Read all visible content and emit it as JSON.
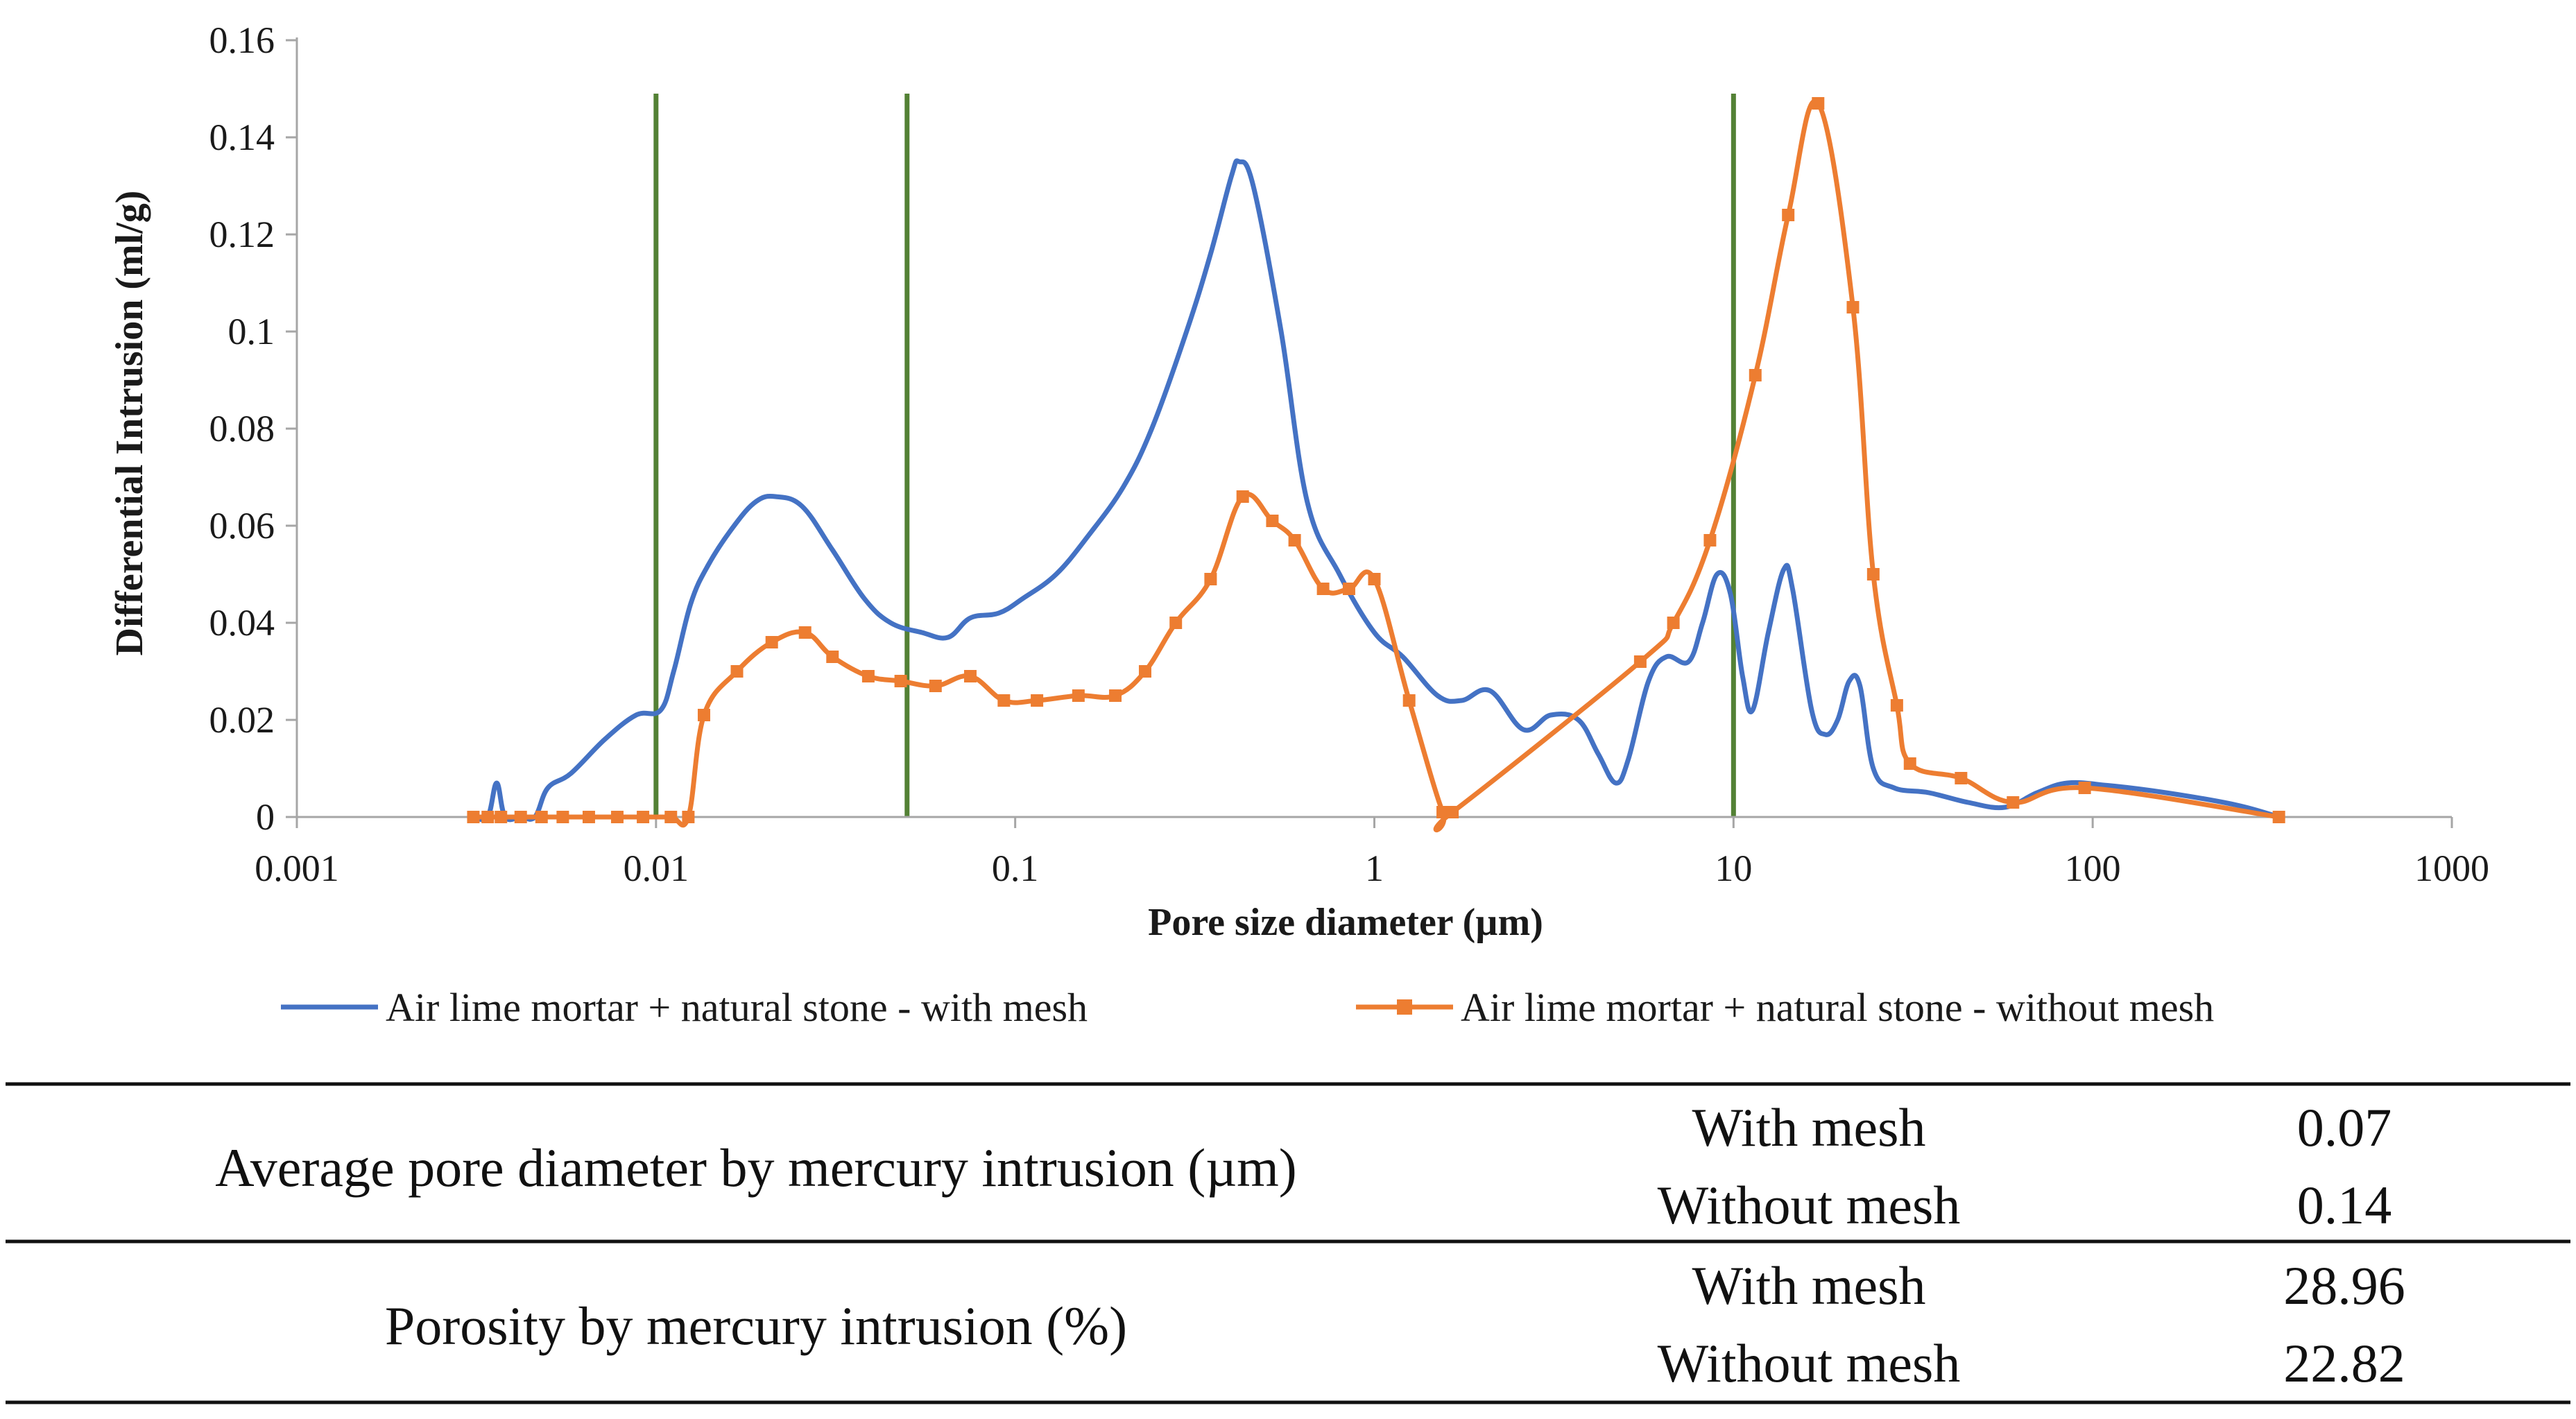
{
  "chart_data": {
    "type": "line",
    "title": "",
    "xlabel": "Pore size diameter (µm)",
    "ylabel": "Differential Intrusion  (ml/g)",
    "xscale": "log",
    "xlim": [
      0.001,
      1000
    ],
    "ylim": [
      0,
      0.16
    ],
    "xticks": [
      {
        "value": 0.001,
        "label": "0.001"
      },
      {
        "value": 0.01,
        "label": "0.01"
      },
      {
        "value": 0.1,
        "label": "0.1"
      },
      {
        "value": 1,
        "label": "1"
      },
      {
        "value": 10,
        "label": "10"
      },
      {
        "value": 100,
        "label": "100"
      },
      {
        "value": 1000,
        "label": "1000"
      }
    ],
    "yticks": [
      {
        "value": 0,
        "label": "0"
      },
      {
        "value": 0.02,
        "label": "0.02"
      },
      {
        "value": 0.04,
        "label": "0.04"
      },
      {
        "value": 0.06,
        "label": "0.06"
      },
      {
        "value": 0.08,
        "label": "0.08"
      },
      {
        "value": 0.1,
        "label": "0.1"
      },
      {
        "value": 0.12,
        "label": "0.12"
      },
      {
        "value": 0.14,
        "label": "0.14"
      },
      {
        "value": 0.16,
        "label": "0.16"
      }
    ],
    "reference_lines_x": [
      0.01,
      0.05,
      10
    ],
    "reference_line_color": "#538135",
    "legend_position": "bottom",
    "series": [
      {
        "name": "Air lime mortar + natural stone - with mesh",
        "color": "#4472c4",
        "marker": "none",
        "points": [
          [
            0.0031,
            0
          ],
          [
            0.0034,
            0
          ],
          [
            0.0036,
            0.007
          ],
          [
            0.0038,
            0
          ],
          [
            0.0042,
            0
          ],
          [
            0.0046,
            0
          ],
          [
            0.005,
            0.006
          ],
          [
            0.0058,
            0.009
          ],
          [
            0.0072,
            0.016
          ],
          [
            0.0088,
            0.021
          ],
          [
            0.0103,
            0.022
          ],
          [
            0.0112,
            0.03
          ],
          [
            0.0125,
            0.044
          ],
          [
            0.014,
            0.052
          ],
          [
            0.0165,
            0.06
          ],
          [
            0.019,
            0.065
          ],
          [
            0.0215,
            0.066
          ],
          [
            0.0255,
            0.064
          ],
          [
            0.031,
            0.055
          ],
          [
            0.038,
            0.045
          ],
          [
            0.045,
            0.04
          ],
          [
            0.055,
            0.038
          ],
          [
            0.065,
            0.037
          ],
          [
            0.075,
            0.041
          ],
          [
            0.09,
            0.042
          ],
          [
            0.105,
            0.045
          ],
          [
            0.13,
            0.05
          ],
          [
            0.16,
            0.058
          ],
          [
            0.2,
            0.068
          ],
          [
            0.24,
            0.08
          ],
          [
            0.3,
            0.1
          ],
          [
            0.35,
            0.116
          ],
          [
            0.4,
            0.132
          ],
          [
            0.42,
            0.135
          ],
          [
            0.46,
            0.13
          ],
          [
            0.55,
            0.1
          ],
          [
            0.65,
            0.065
          ],
          [
            0.8,
            0.05
          ],
          [
            1.0,
            0.038
          ],
          [
            1.2,
            0.033
          ],
          [
            1.5,
            0.025
          ],
          [
            1.75,
            0.024
          ],
          [
            2.1,
            0.026
          ],
          [
            2.6,
            0.018
          ],
          [
            3.1,
            0.021
          ],
          [
            3.7,
            0.02
          ],
          [
            4.2,
            0.013
          ],
          [
            4.7,
            0.007
          ],
          [
            5.1,
            0.012
          ],
          [
            5.8,
            0.028
          ],
          [
            6.5,
            0.033
          ],
          [
            7.5,
            0.032
          ],
          [
            8.2,
            0.04
          ],
          [
            9.0,
            0.05
          ],
          [
            9.8,
            0.046
          ],
          [
            10.6,
            0.029
          ],
          [
            11.3,
            0.022
          ],
          [
            12.5,
            0.038
          ],
          [
            13.8,
            0.051
          ],
          [
            14.6,
            0.047
          ],
          [
            16.5,
            0.022
          ],
          [
            18,
            0.017
          ],
          [
            19.5,
            0.02
          ],
          [
            21,
            0.028
          ],
          [
            22.5,
            0.027
          ],
          [
            24.5,
            0.01
          ],
          [
            28,
            0.006
          ],
          [
            35,
            0.005
          ],
          [
            45,
            0.003
          ],
          [
            57,
            0.002
          ],
          [
            70,
            0.005
          ],
          [
            85,
            0.007
          ],
          [
            110,
            0.0065
          ],
          [
            160,
            0.005
          ],
          [
            250,
            0.0025
          ],
          [
            330,
            0
          ]
        ]
      },
      {
        "name": "Air lime mortar + natural stone - without mesh",
        "color": "#ed7d31",
        "marker": "square",
        "points": [
          [
            0.0031,
            0
          ],
          [
            0.0034,
            0
          ],
          [
            0.0037,
            0
          ],
          [
            0.0042,
            0
          ],
          [
            0.0048,
            0
          ],
          [
            0.0055,
            0
          ],
          [
            0.0065,
            0
          ],
          [
            0.0078,
            0
          ],
          [
            0.0092,
            0
          ],
          [
            0.011,
            0
          ],
          [
            0.0123,
            0
          ],
          [
            0.0136,
            0.021
          ],
          [
            0.0168,
            0.03
          ],
          [
            0.021,
            0.036
          ],
          [
            0.026,
            0.038
          ],
          [
            0.031,
            0.033
          ],
          [
            0.039,
            0.029
          ],
          [
            0.048,
            0.028
          ],
          [
            0.06,
            0.027
          ],
          [
            0.075,
            0.029
          ],
          [
            0.093,
            0.024
          ],
          [
            0.115,
            0.024
          ],
          [
            0.15,
            0.025
          ],
          [
            0.19,
            0.025
          ],
          [
            0.23,
            0.03
          ],
          [
            0.28,
            0.04
          ],
          [
            0.35,
            0.049
          ],
          [
            0.43,
            0.066
          ],
          [
            0.52,
            0.061
          ],
          [
            0.6,
            0.057
          ],
          [
            0.72,
            0.047
          ],
          [
            0.85,
            0.047
          ],
          [
            1.0,
            0.049
          ],
          [
            1.25,
            0.024
          ],
          [
            1.55,
            0.001
          ],
          [
            1.65,
            0.001
          ],
          [
            5.5,
            0.032
          ],
          [
            6.8,
            0.04
          ],
          [
            8.6,
            0.057
          ],
          [
            11.5,
            0.091
          ],
          [
            14.2,
            0.124
          ],
          [
            17.2,
            0.147
          ],
          [
            21.5,
            0.105
          ],
          [
            24.5,
            0.05
          ],
          [
            28.5,
            0.023
          ],
          [
            31,
            0.011
          ],
          [
            43,
            0.008
          ],
          [
            60,
            0.003
          ],
          [
            95,
            0.006
          ],
          [
            330,
            0
          ]
        ]
      }
    ]
  },
  "table": {
    "rows": [
      {
        "property": "Average pore diameter by mercury intrusion (µm)",
        "entries": [
          {
            "condition": "With mesh",
            "value": "0.07"
          },
          {
            "condition": "Without mesh",
            "value": "0.14"
          }
        ]
      },
      {
        "property": "Porosity by mercury intrusion (%)",
        "entries": [
          {
            "condition": "With mesh",
            "value": "28.96"
          },
          {
            "condition": "Without mesh",
            "value": "22.82"
          }
        ]
      }
    ]
  }
}
